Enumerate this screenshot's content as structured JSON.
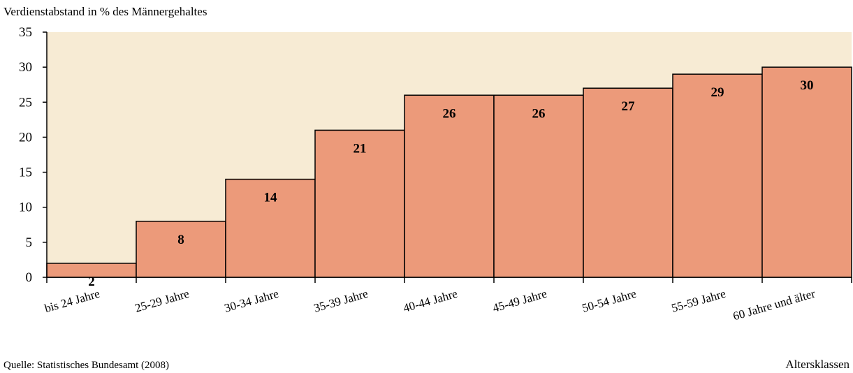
{
  "chart_data": {
    "type": "bar",
    "title": "",
    "ylabel": "Verdienstabstand in % des Männergehaltes",
    "xlabel": "Altersklassen",
    "categories": [
      "bis 24 Jahre",
      "25-29 Jahre",
      "30-34 Jahre",
      "35-39 Jahre",
      "40-44 Jahre",
      "45-49 Jahre",
      "50-54 Jahre",
      "55-59 Jahre",
      "60 Jahre und älter"
    ],
    "values": [
      2,
      8,
      14,
      21,
      26,
      26,
      27,
      29,
      30
    ],
    "ylim": [
      0,
      35
    ],
    "yticks": [
      0,
      5,
      10,
      15,
      20,
      25,
      30,
      35
    ],
    "grid": false,
    "legend": "none",
    "colors": {
      "bar": "#EC9A7A",
      "plot_bg": "#F7EBD4",
      "bar_stroke": "#000000"
    }
  },
  "source": "Quelle: Statistisches Bundesamt (2008)"
}
